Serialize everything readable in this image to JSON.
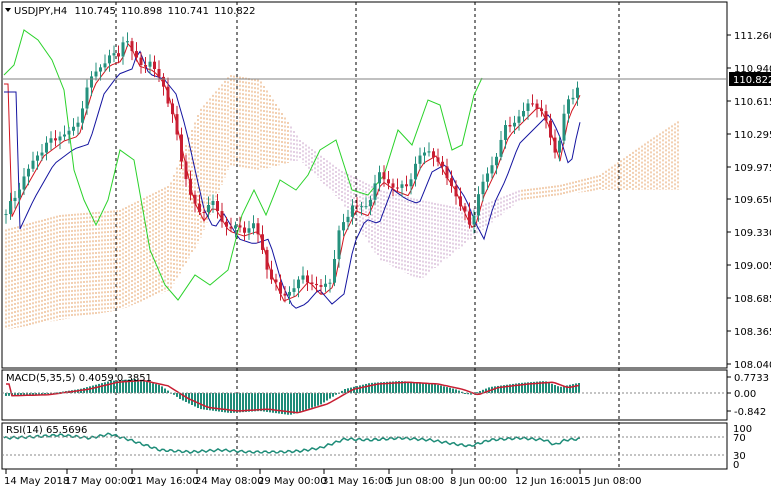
{
  "header": {
    "symbol": "USDJPY,H4",
    "open": "110.745",
    "high": "110.898",
    "low": "110.741",
    "close": "110.822"
  },
  "main_axis": {
    "ticks": [
      "111.260",
      "110.940",
      "110.615",
      "110.295",
      "109.975",
      "109.650",
      "109.330",
      "109.005",
      "108.685",
      "108.365",
      "108.040"
    ],
    "current_price": "110.822"
  },
  "macd": {
    "label": "MACD(5,35,5) 0.4059 0.3851",
    "ticks": [
      "0.7733",
      "0.00",
      "-0.842"
    ]
  },
  "rsi": {
    "label": "RSI(14) 65.5696",
    "ticks": [
      "100",
      "70",
      "30",
      "0"
    ]
  },
  "time_axis": {
    "labels": [
      "14 May 2018",
      "17 May 00:00",
      "21 May 16:00",
      "24 May 08:00",
      "29 May 00:00",
      "31 May 16:00",
      "5 Jun 08:00",
      "8 Jun 00:00",
      "12 Jun 16:00",
      "15 Jun 08:00"
    ]
  },
  "colors": {
    "bull": "#26917e",
    "bear": "#c81e32",
    "tenkan": "#d2141e",
    "kijun": "#1414a0",
    "chikou": "#2ad22a",
    "cloud_a": "#e6a064",
    "cloud_b": "#c8a0c8",
    "macd": "#1e8c78",
    "signal": "#c81e32",
    "rsi": "#1e8c78"
  }
}
